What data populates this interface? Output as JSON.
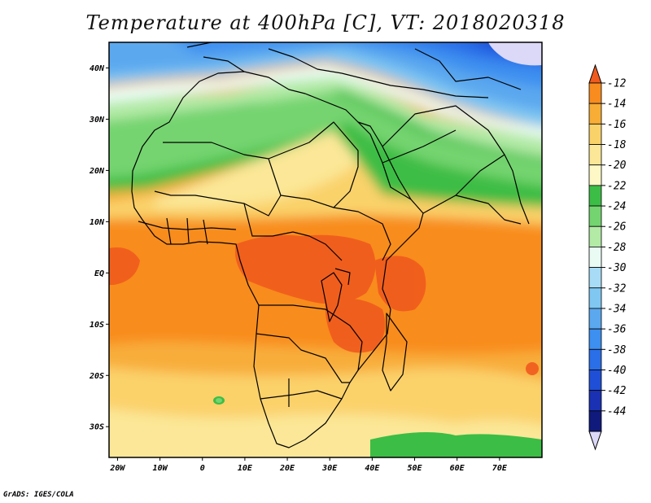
{
  "title": "Temperature at 400hPa [C], VT: 2018020318",
  "credit": "GrADS: IGES/COLA",
  "map": {
    "lon_range": [
      -22,
      80
    ],
    "lat_range": [
      -36,
      45
    ],
    "lat_ticks": [
      {
        "value": 40,
        "label": "40N"
      },
      {
        "value": 30,
        "label": "30N"
      },
      {
        "value": 20,
        "label": "20N"
      },
      {
        "value": 10,
        "label": "10N"
      },
      {
        "value": 0,
        "label": "EQ"
      },
      {
        "value": -10,
        "label": "10S"
      },
      {
        "value": -20,
        "label": "20S"
      },
      {
        "value": -30,
        "label": "30S"
      }
    ],
    "lon_ticks": [
      {
        "value": -20,
        "label": "20W"
      },
      {
        "value": -10,
        "label": "10W"
      },
      {
        "value": 0,
        "label": "0"
      },
      {
        "value": 10,
        "label": "10E"
      },
      {
        "value": 20,
        "label": "20E"
      },
      {
        "value": 30,
        "label": "30E"
      },
      {
        "value": 40,
        "label": "40E"
      },
      {
        "value": 50,
        "label": "50E"
      },
      {
        "value": 60,
        "label": "60E"
      },
      {
        "value": 70,
        "label": "70E"
      }
    ]
  },
  "colorbar": {
    "levels": [
      "-12",
      "-14",
      "-16",
      "-18",
      "-20",
      "-22",
      "-24",
      "-26",
      "-28",
      "-30",
      "-32",
      "-34",
      "-36",
      "-38",
      "-40",
      "-42",
      "-44"
    ],
    "colors": [
      "#f05a1e",
      "#f88c1e",
      "#f7ad36",
      "#fad26a",
      "#fbe797",
      "#fdf8c6",
      "#3cbd45",
      "#74d470",
      "#b2eaa6",
      "#eafbf4",
      "#a8dcf6",
      "#80c8f2",
      "#5ba8ef",
      "#3d8ff0",
      "#2a6ee8",
      "#1f4fd6",
      "#1a31b4",
      "#101a7c",
      "#dcd8f8"
    ]
  }
}
